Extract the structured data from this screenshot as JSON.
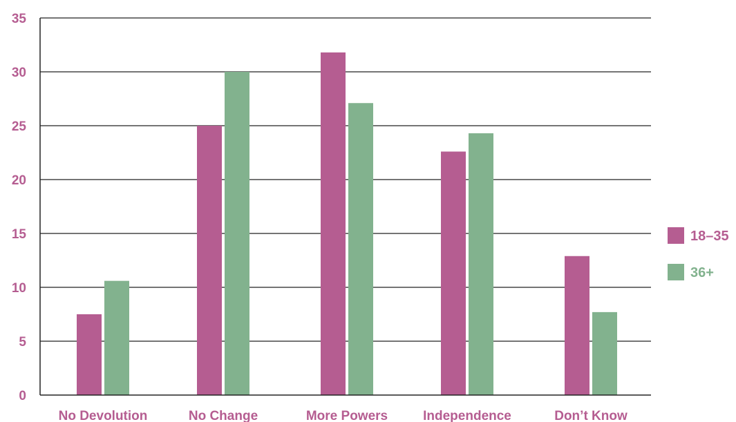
{
  "chart_data": {
    "type": "bar",
    "categories": [
      "No Devolution",
      "No Change",
      "More Powers",
      "Independence",
      "Don’t Know"
    ],
    "series": [
      {
        "name": "18–35",
        "color": "#b55d91",
        "values": [
          7.5,
          25.0,
          31.8,
          22.6,
          12.9
        ]
      },
      {
        "name": "36+",
        "color": "#82b28e",
        "values": [
          10.6,
          30.0,
          27.1,
          24.3,
          7.7
        ]
      }
    ],
    "yticks": [
      0,
      5,
      10,
      15,
      20,
      25,
      30,
      35
    ],
    "ylim": [
      0,
      35
    ],
    "grid": true,
    "legend_position": "right",
    "label_color": "#b55d91"
  }
}
